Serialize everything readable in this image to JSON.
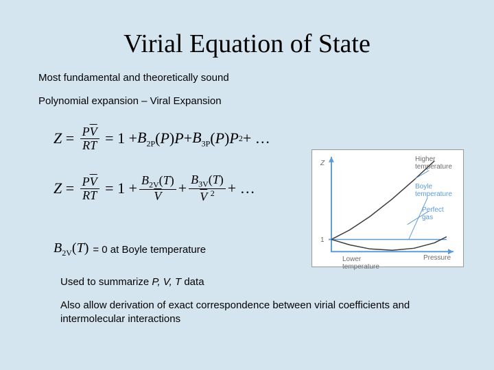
{
  "title": "Virial Equation of State",
  "text": {
    "line1": "Most fundamental and theoretically sound",
    "line2": "Polynomial expansion – Viral Expansion",
    "boyle_eq": "= 0 at Boyle temperature",
    "summary_pre": "Used to summarize ",
    "summary_vars": "P, V, T",
    "summary_post": " data",
    "final": "Also allow derivation of exact correspondence between virial coefficients and intermolecular interactions"
  },
  "equations": {
    "eq1_lhs": "Z",
    "eq1_frac_num": "PV̄",
    "eq1_frac_den": "RT",
    "eq1_rhs": "= 1 + B₂ₚ(P)P + B₃ₚ(P)P² + …",
    "eq2_rhs": "(T) coefficients in 1/V̄ powers",
    "b2v_label": "B₂ᵥ(T)"
  },
  "chart": {
    "type": "line",
    "background_color": "#ffffff",
    "axis_color": "#5c9bd5",
    "axis_width": 2,
    "curves": [
      {
        "name": "higher-temperature",
        "color": "#3a3a3a",
        "width": 1.5,
        "points": [
          [
            28,
            132
          ],
          [
            55,
            118
          ],
          [
            85,
            98
          ],
          [
            118,
            72
          ],
          [
            150,
            44
          ],
          [
            180,
            16
          ]
        ]
      },
      {
        "name": "perfect-gas",
        "color": "#5c9bd5",
        "width": 1.5,
        "points": [
          [
            28,
            132
          ],
          [
            198,
            132
          ]
        ]
      },
      {
        "name": "lower-temperature",
        "color": "#3a3a3a",
        "width": 1.5,
        "points": [
          [
            28,
            132
          ],
          [
            55,
            140
          ],
          [
            85,
            146
          ],
          [
            118,
            148
          ],
          [
            150,
            145
          ],
          [
            180,
            137
          ],
          [
            198,
            128
          ]
        ]
      }
    ],
    "labels": {
      "z": "Z",
      "one": "1",
      "pressure": "Pressure",
      "higher": "Higher temperature",
      "boyle": "Boyle temperature",
      "perfect": "Perfect gas",
      "lower": "Lower temperature"
    },
    "label_color": "#6a6a6a",
    "label_fontsize": 10
  }
}
